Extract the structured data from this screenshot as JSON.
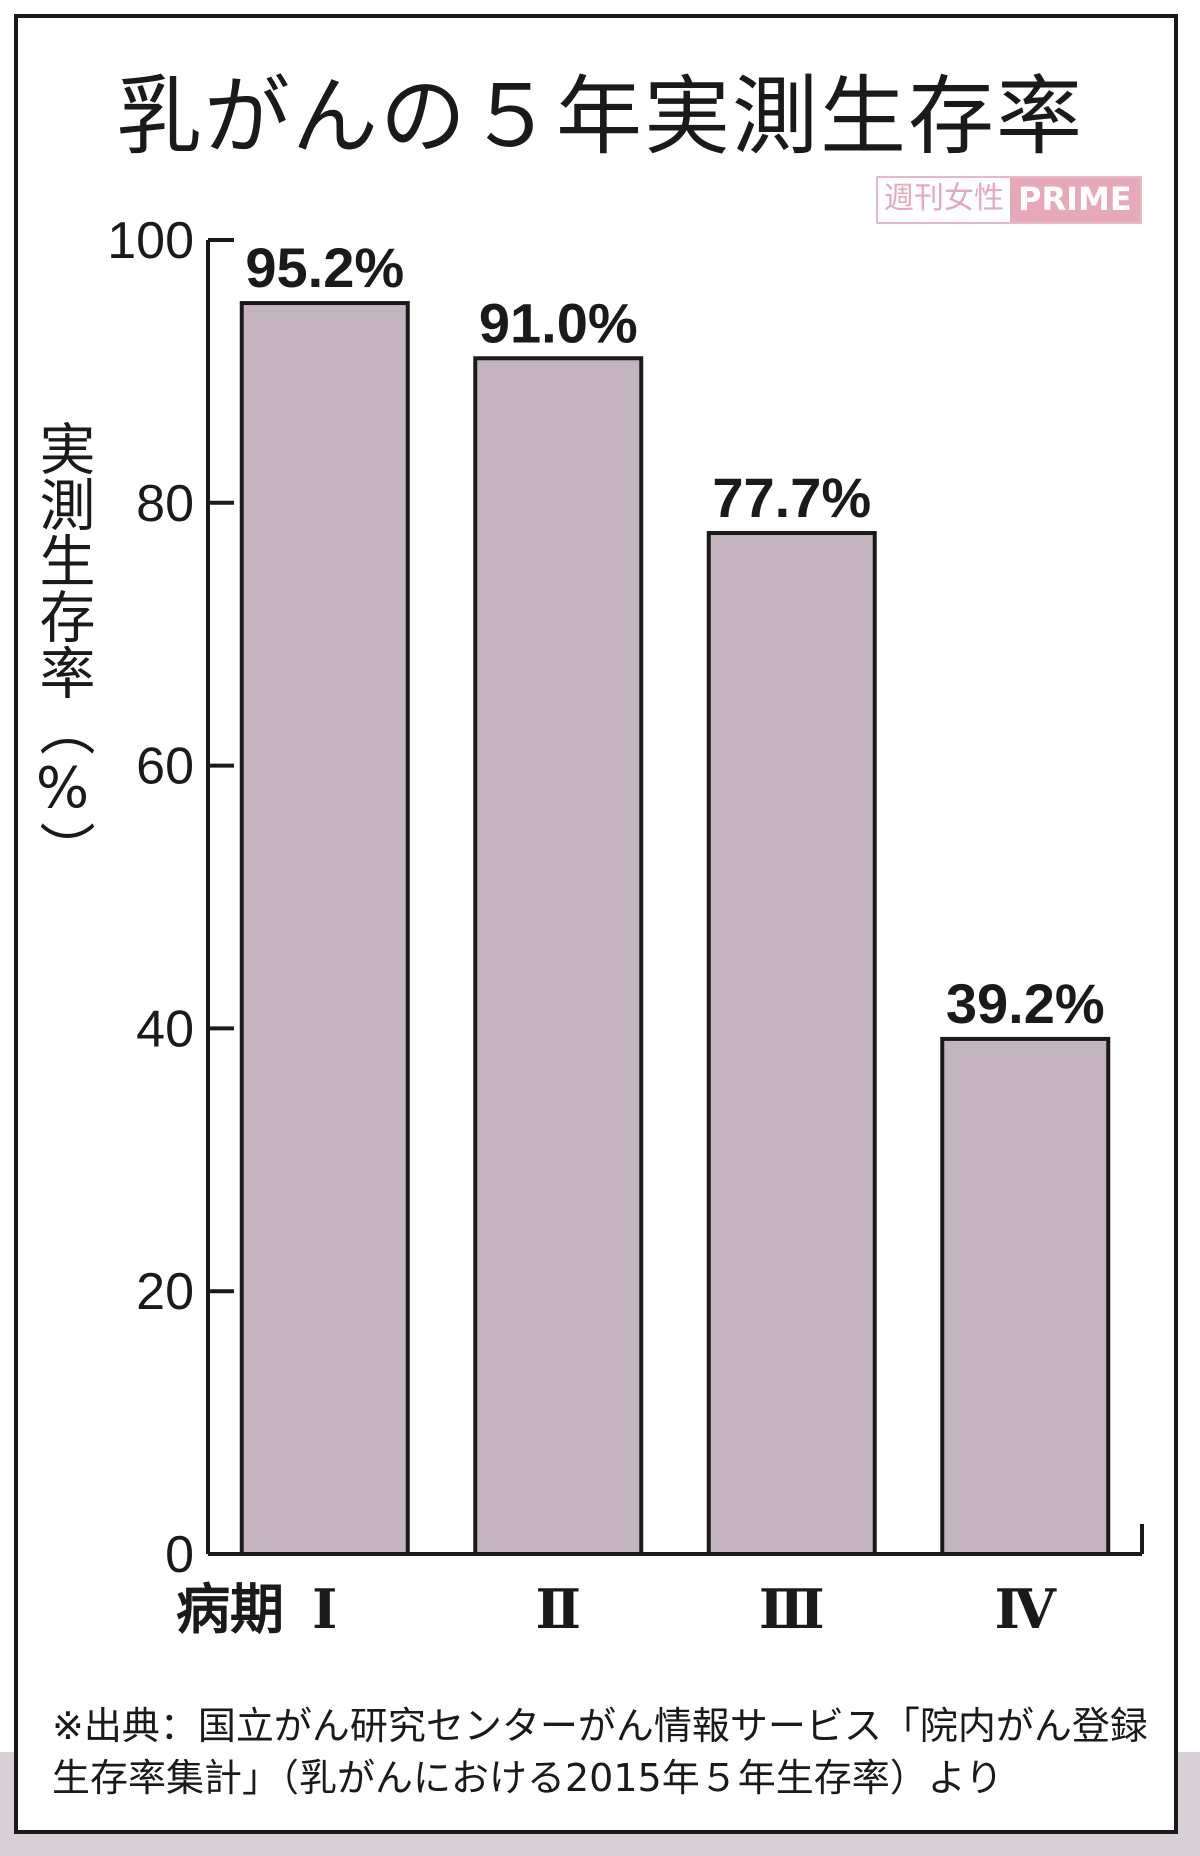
{
  "chart_data": {
    "type": "bar",
    "title": "乳がんの５年実測生存率",
    "ylabel": "実測生存率（%）",
    "xlabel": "病期",
    "categories": [
      "Ⅰ",
      "Ⅱ",
      "Ⅲ",
      "Ⅳ"
    ],
    "values": [
      95.2,
      91.0,
      77.7,
      39.2
    ],
    "data_labels": [
      "95.2%",
      "91.0%",
      "77.7%",
      "39.2%"
    ],
    "ylim": [
      0,
      100
    ],
    "yticks": [
      0,
      20,
      40,
      60,
      80,
      100
    ],
    "ytick_labels": [
      "0",
      "20",
      "40",
      "60",
      "80",
      "100"
    ],
    "bar_color": "#c4b4bf",
    "grid": false,
    "legend": "none"
  },
  "watermark": {
    "left": "週刊女性",
    "right": "PRIME"
  },
  "source_note": "※出典：国立がん研究センターがん情報サービス「院内がん登録生存率集計」（乳がんにおける2015年５年生存率）より"
}
